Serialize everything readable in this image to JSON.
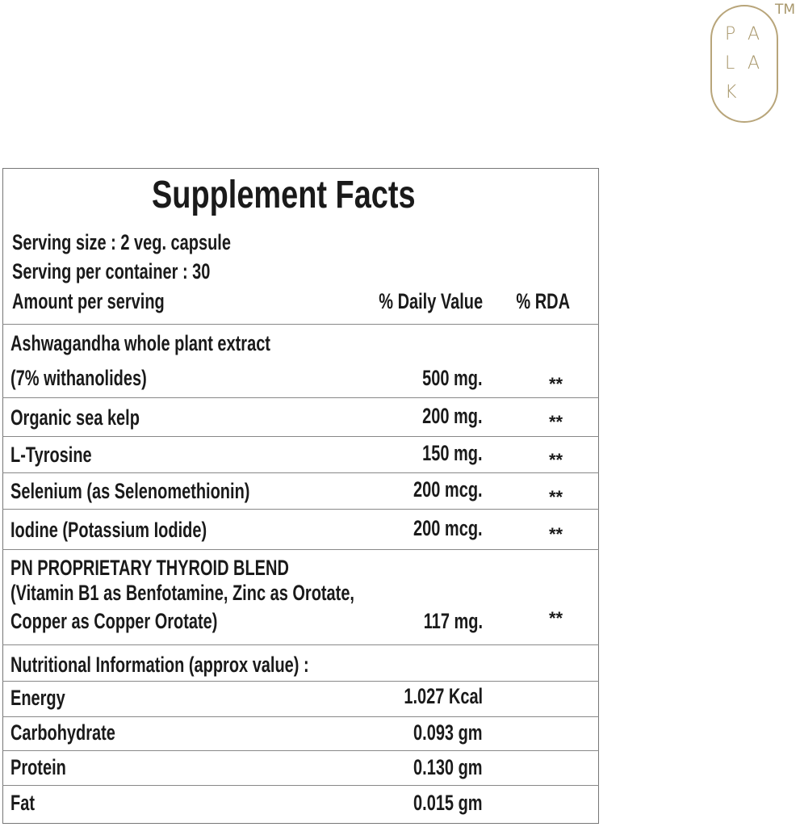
{
  "logo": {
    "letters": [
      "P",
      "A",
      "L",
      "A",
      "K"
    ],
    "trademark": "TM",
    "color": "#b8a57a"
  },
  "title": "Supplement Facts",
  "serving_size": "Serving size : 2 veg. capsule",
  "servings_per_container": "Serving per container : 30",
  "header": {
    "amount": "Amount per serving",
    "daily_value": "% Daily Value",
    "rda": "% RDA"
  },
  "ingredients": [
    {
      "name_line1": "Ashwagandha whole plant extract",
      "name_line2": "(7% withanolides)",
      "amount": "500 mg.",
      "rda": "**"
    },
    {
      "name": "Organic sea kelp",
      "amount": "200 mg.",
      "rda": "**"
    },
    {
      "name": "L-Tyrosine",
      "amount": "150 mg.",
      "rda": "**"
    },
    {
      "name": "Selenium (as Selenomethionin)",
      "amount": "200 mcg.",
      "rda": "**"
    },
    {
      "name": "Iodine (Potassium Iodide)",
      "amount": "200 mcg.",
      "rda": "**"
    },
    {
      "name_line1": "PN PROPRIETARY THYROID BLEND",
      "name_line2": "(Vitamin B1 as Benfotamine, Zinc as Orotate,",
      "name_line3": "Copper as Copper Orotate)",
      "amount": "117 mg.",
      "rda": "**"
    }
  ],
  "nutrition": {
    "heading": "Nutritional Information (approx value) :",
    "rows": [
      {
        "name": "Energy",
        "value": "1.027 Kcal"
      },
      {
        "name": "Carbohydrate",
        "value": "0.093 gm"
      },
      {
        "name": "Protein",
        "value": "0.130 gm"
      },
      {
        "name": "Fat",
        "value": "0.015 gm"
      }
    ]
  }
}
